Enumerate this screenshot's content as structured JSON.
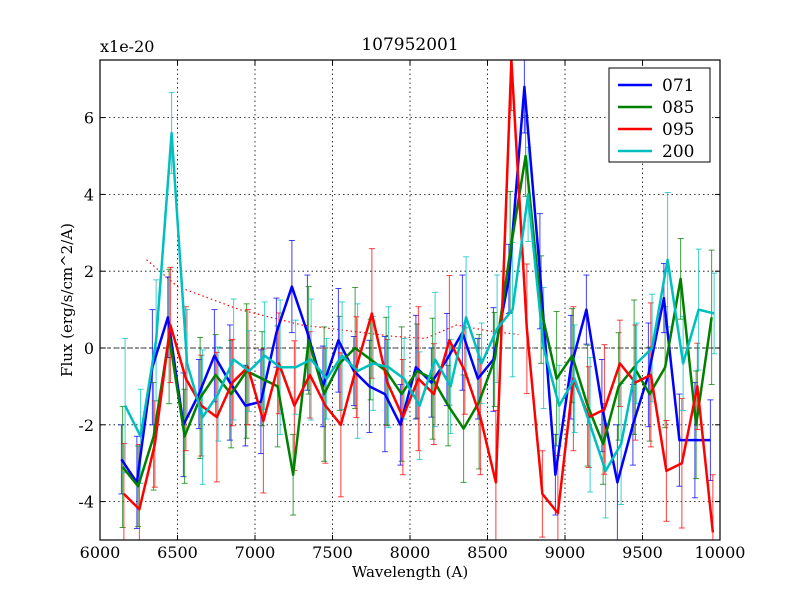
{
  "chart_data": {
    "type": "line",
    "title": "107952001",
    "xlabel": "Wavelength (A)",
    "ylabel": "Flux (erg/s/cm^2/A)",
    "y_scale_label": "x1e-20",
    "xlim": [
      6000,
      10000
    ],
    "ylim": [
      -5,
      7.5
    ],
    "x_ticks": [
      6000,
      6500,
      7000,
      7500,
      8000,
      8500,
      9000,
      9500,
      10000
    ],
    "x_tick_labels": [
      "6000",
      "6500",
      "7000",
      "7500",
      "8000",
      "8500",
      "9000",
      "9500",
      "10000"
    ],
    "y_ticks": [
      -4,
      -2,
      0,
      2,
      4,
      6
    ],
    "y_tick_labels": [
      "-4",
      "-2",
      "0",
      "2",
      "4",
      "6"
    ],
    "grid": true,
    "legend_position": "top-right",
    "x": [
      6150,
      6250,
      6350,
      6450,
      6550,
      6650,
      6750,
      6850,
      6950,
      7050,
      7150,
      7250,
      7350,
      7450,
      7550,
      7650,
      7750,
      7850,
      7950,
      8050,
      8150,
      8250,
      8350,
      8450,
      8550,
      8650,
      8750,
      8850,
      8950,
      9050,
      9150,
      9250,
      9350,
      9450,
      9550,
      9650,
      9750,
      9850,
      9950
    ],
    "series": [
      {
        "name": "071",
        "color": "#0000ff",
        "error": 1.2,
        "values": [
          -2.9,
          -3.5,
          -0.5,
          0.8,
          -2.0,
          -1.2,
          -0.2,
          -0.9,
          -1.5,
          -1.4,
          0.4,
          1.6,
          0.4,
          -1.0,
          0.2,
          -0.6,
          -1.0,
          -1.2,
          -2.0,
          -0.5,
          -0.9,
          -0.3,
          0.4,
          -0.8,
          -0.3,
          1.8,
          6.8,
          2.0,
          -3.3,
          -0.5,
          1.0,
          -1.5,
          -3.5,
          -2.0,
          -0.7,
          1.3,
          -2.4,
          -2.4,
          -2.4
        ]
      },
      {
        "name": "085",
        "color": "#008000",
        "error": 1.4,
        "values": [
          -3.1,
          -3.6,
          -2.3,
          0.3,
          -2.3,
          -1.3,
          -0.7,
          -1.2,
          -0.6,
          -0.8,
          -1.0,
          -3.3,
          0.2,
          -1.2,
          -0.4,
          0.0,
          -0.3,
          -0.6,
          -1.2,
          -0.6,
          -0.8,
          -1.5,
          -2.1,
          -1.4,
          -0.3,
          2.5,
          5.0,
          1.0,
          -0.8,
          -0.2,
          -1.5,
          -2.5,
          -1.0,
          -0.5,
          -1.2,
          -0.5,
          1.8,
          -2.0,
          0.8
        ]
      },
      {
        "name": "095",
        "color": "#ff0000",
        "error": 1.5,
        "values": [
          -3.8,
          -4.2,
          -2.5,
          0.6,
          -0.8,
          -1.5,
          -1.8,
          -0.9,
          -0.5,
          -1.9,
          -0.4,
          -1.5,
          -0.7,
          -1.5,
          -2.0,
          -0.5,
          0.9,
          -0.9,
          -1.8,
          -0.8,
          -1.2,
          0.2,
          -0.6,
          -1.8,
          -3.5,
          7.5,
          0.5,
          -3.8,
          -4.3,
          -0.8,
          -1.8,
          -1.6,
          -0.4,
          -0.9,
          -0.7,
          -3.2,
          -3.0,
          -1.0,
          -4.8
        ]
      },
      {
        "name": "200",
        "color": "#00bfbf",
        "error": 1.4,
        "values": [
          -1.5,
          -2.3,
          0.2,
          5.6,
          -0.4,
          -1.8,
          -1.2,
          -0.3,
          -0.6,
          -0.2,
          -0.5,
          -0.5,
          -0.3,
          -0.8,
          -0.2,
          -0.6,
          -0.4,
          -0.5,
          -0.8,
          -1.5,
          -0.3,
          -1.0,
          0.8,
          -0.4,
          0.5,
          1.0,
          4.0,
          0.0,
          -1.5,
          -0.8,
          -2.0,
          -3.2,
          -2.5,
          -0.4,
          0.0,
          2.3,
          -0.4,
          1.0,
          0.9
        ]
      }
    ],
    "reference_curve": {
      "style": "dotted",
      "color": "#ff0000",
      "x": [
        6300,
        6500,
        6700,
        6900,
        7100,
        7300,
        7500,
        7700,
        7900,
        8100,
        8300,
        8500,
        8700
      ],
      "values": [
        2.3,
        1.6,
        1.3,
        1.0,
        0.8,
        0.6,
        0.5,
        0.4,
        0.3,
        0.25,
        0.6,
        0.45,
        0.35
      ]
    }
  }
}
